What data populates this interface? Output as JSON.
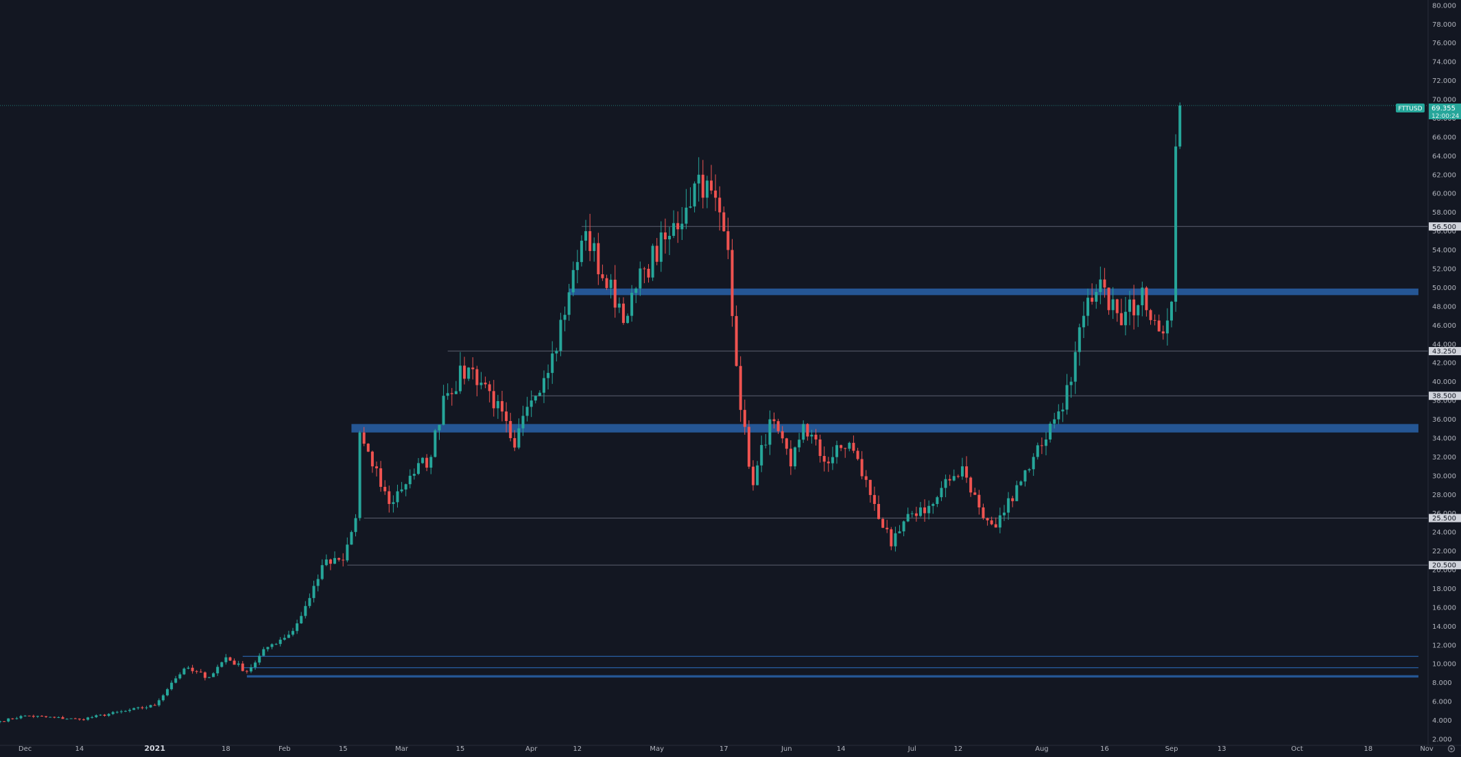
{
  "chart_data": {
    "type": "candlestick",
    "symbol": "FTTUSD",
    "last_price": "69.355",
    "countdown": "12:00:24",
    "colors": {
      "background": "#131722",
      "up": "#26a69a",
      "down": "#ef5350",
      "zone": "#2962a8",
      "level_line": "#5d6170",
      "label_bg": "#d1d4dc",
      "axis_text": "#b2b5be"
    },
    "y_axis": {
      "min": 2,
      "max": 80,
      "ticks": [
        "2.000",
        "4.000",
        "6.000",
        "8.000",
        "10.000",
        "12.000",
        "14.000",
        "16.000",
        "18.000",
        "20.000",
        "22.000",
        "24.000",
        "26.000",
        "28.000",
        "30.000",
        "32.000",
        "34.000",
        "36.000",
        "38.000",
        "40.000",
        "42.000",
        "44.000",
        "46.000",
        "48.000",
        "50.000",
        "52.000",
        "54.000",
        "56.000",
        "58.000",
        "60.000",
        "62.000",
        "64.000",
        "66.000",
        "68.000",
        "70.000",
        "72.000",
        "74.000",
        "76.000",
        "78.000",
        "80.000"
      ]
    },
    "x_axis": {
      "start": "2020-11-25",
      "end": "2021-11-08",
      "labels": [
        {
          "date": "2020-12-01",
          "text": "Dec"
        },
        {
          "date": "2020-12-14",
          "text": "14"
        },
        {
          "date": "2021-01-01",
          "text": "2021",
          "year": true
        },
        {
          "date": "2021-01-18",
          "text": "18"
        },
        {
          "date": "2021-02-01",
          "text": "Feb"
        },
        {
          "date": "2021-02-15",
          "text": "15"
        },
        {
          "date": "2021-03-01",
          "text": "Mar"
        },
        {
          "date": "2021-03-15",
          "text": "15"
        },
        {
          "date": "2021-04-01",
          "text": "Apr"
        },
        {
          "date": "2021-04-12",
          "text": "12"
        },
        {
          "date": "2021-05-01",
          "text": "May"
        },
        {
          "date": "2021-05-17",
          "text": "17"
        },
        {
          "date": "2021-06-01",
          "text": "Jun"
        },
        {
          "date": "2021-06-14",
          "text": "14"
        },
        {
          "date": "2021-07-01",
          "text": "Jul"
        },
        {
          "date": "2021-07-12",
          "text": "12"
        },
        {
          "date": "2021-08-01",
          "text": "Aug"
        },
        {
          "date": "2021-08-16",
          "text": "16"
        },
        {
          "date": "2021-09-01",
          "text": "Sep"
        },
        {
          "date": "2021-09-13",
          "text": "13"
        },
        {
          "date": "2021-10-01",
          "text": "Oct"
        },
        {
          "date": "2021-10-18",
          "text": "18"
        },
        {
          "date": "2021-11-01",
          "text": "Nov"
        }
      ]
    },
    "level_lines": [
      {
        "price": 56.5,
        "label": "56.500",
        "start": "2021-04-13"
      },
      {
        "price": 43.25,
        "label": "43.250",
        "start": "2021-03-12"
      },
      {
        "price": 38.5,
        "label": "38.500",
        "start": "2021-04-01"
      },
      {
        "price": 25.5,
        "label": "25.500",
        "start": "2021-02-20"
      },
      {
        "price": 20.5,
        "label": "20.500",
        "start": "2021-02-16"
      }
    ],
    "zones": [
      {
        "low": 49.2,
        "high": 49.9,
        "start": "2021-04-10",
        "end": "2021-10-30"
      },
      {
        "low": 34.6,
        "high": 35.5,
        "start": "2021-02-17",
        "end": "2021-10-30"
      },
      {
        "low": 8.55,
        "high": 8.8,
        "start": "2021-01-23",
        "end": "2021-10-30"
      }
    ],
    "thin_lines": [
      {
        "price": 10.8,
        "start": "2021-01-22",
        "end": "2021-10-30"
      },
      {
        "price": 9.6,
        "start": "2021-01-22",
        "end": "2021-10-30"
      }
    ],
    "anchors": [
      [
        "2020-11-25",
        3.9
      ],
      [
        "2020-12-01",
        4.5
      ],
      [
        "2020-12-14",
        4.1
      ],
      [
        "2020-12-25",
        5.0
      ],
      [
        "2021-01-01",
        5.6
      ],
      [
        "2021-01-05",
        8.0
      ],
      [
        "2021-01-08",
        9.5
      ],
      [
        "2021-01-14",
        8.6
      ],
      [
        "2021-01-18",
        10.7
      ],
      [
        "2021-01-23",
        9.2
      ],
      [
        "2021-01-28",
        11.8
      ],
      [
        "2021-02-03",
        13.5
      ],
      [
        "2021-02-07",
        17.0
      ],
      [
        "2021-02-10",
        20.5
      ],
      [
        "2021-02-15",
        21.0
      ],
      [
        "2021-02-18",
        25.5
      ],
      [
        "2021-02-19",
        34.6
      ],
      [
        "2021-02-22",
        31.0
      ],
      [
        "2021-02-26",
        27.0
      ],
      [
        "2021-03-03",
        30.0
      ],
      [
        "2021-03-08",
        32.0
      ],
      [
        "2021-03-11",
        38.5
      ],
      [
        "2021-03-17",
        41.5
      ],
      [
        "2021-03-22",
        39.0
      ],
      [
        "2021-03-27",
        34.0
      ],
      [
        "2021-03-28",
        33.0
      ],
      [
        "2021-04-01",
        38.0
      ],
      [
        "2021-04-06",
        43.0
      ],
      [
        "2021-04-10",
        49.5
      ],
      [
        "2021-04-14",
        56.0
      ],
      [
        "2021-04-18",
        51.0
      ],
      [
        "2021-04-24",
        47.0
      ],
      [
        "2021-04-28",
        52.0
      ],
      [
        "2021-05-04",
        55.5
      ],
      [
        "2021-05-08",
        58.5
      ],
      [
        "2021-05-11",
        62.0
      ],
      [
        "2021-05-16",
        58.0
      ],
      [
        "2021-05-18",
        54.0
      ],
      [
        "2021-05-21",
        37.0
      ],
      [
        "2021-05-24",
        29.0
      ],
      [
        "2021-05-28",
        36.0
      ],
      [
        "2021-06-02",
        31.0
      ],
      [
        "2021-06-05",
        35.5
      ],
      [
        "2021-06-10",
        31.5
      ],
      [
        "2021-06-16",
        33.5
      ],
      [
        "2021-06-22",
        27.0
      ],
      [
        "2021-06-26",
        22.5
      ],
      [
        "2021-07-01",
        26.0
      ],
      [
        "2021-07-06",
        27.0
      ],
      [
        "2021-07-10",
        29.5
      ],
      [
        "2021-07-13",
        31.0
      ],
      [
        "2021-07-18",
        25.5
      ],
      [
        "2021-07-21",
        24.5
      ],
      [
        "2021-07-26",
        29.0
      ],
      [
        "2021-07-30",
        32.0
      ],
      [
        "2021-08-04",
        36.0
      ],
      [
        "2021-08-08",
        40.0
      ],
      [
        "2021-08-11",
        47.0
      ],
      [
        "2021-08-13",
        48.5
      ],
      [
        "2021-08-16",
        50.0
      ],
      [
        "2021-08-20",
        46.0
      ],
      [
        "2021-08-25",
        50.0
      ],
      [
        "2021-08-28",
        46.5
      ],
      [
        "2021-08-31",
        46.5
      ],
      [
        "2021-09-01",
        48.5
      ],
      [
        "2021-09-02",
        65.0
      ],
      [
        "2021-09-03",
        69.355
      ]
    ]
  }
}
